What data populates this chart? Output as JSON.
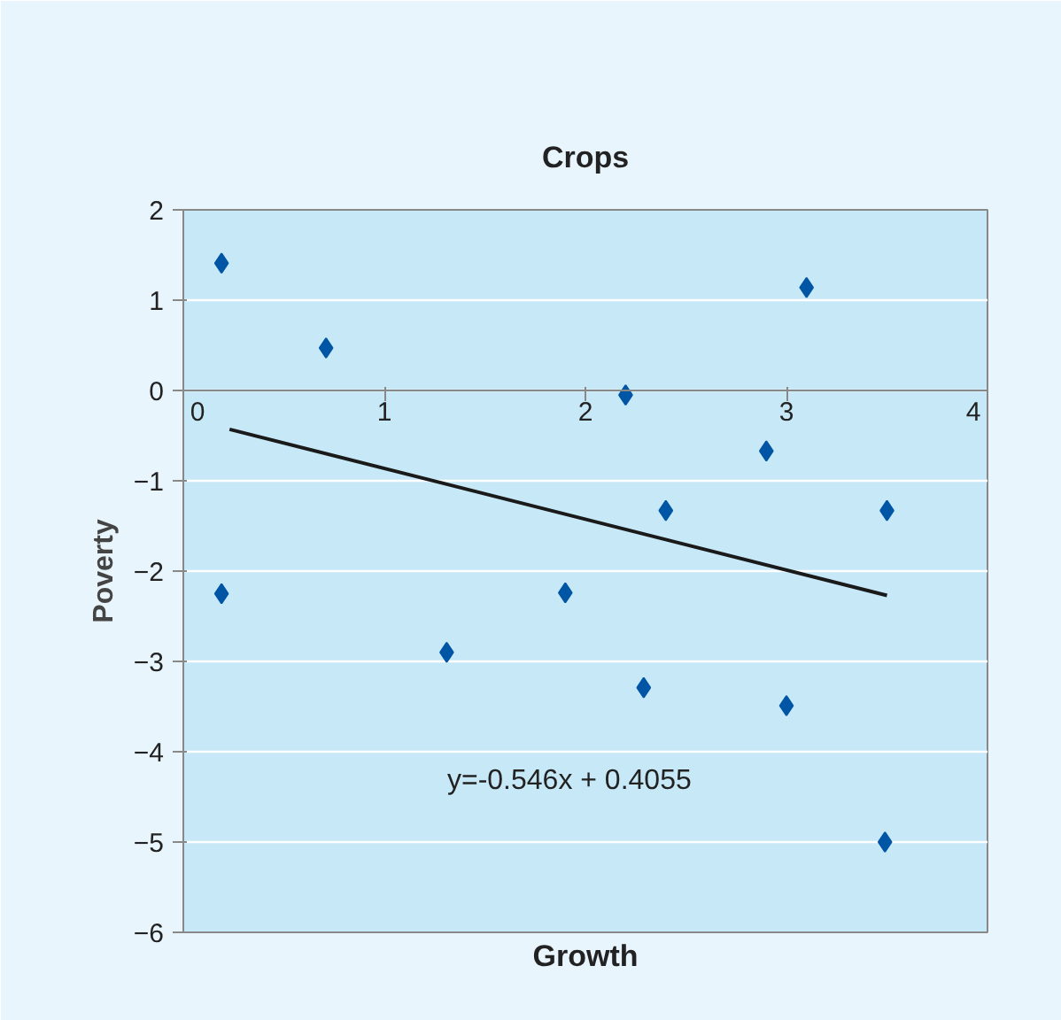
{
  "chart_data": {
    "type": "scatter",
    "title": "Crops",
    "xlabel": "Growth",
    "ylabel": "Poverty",
    "xlim": [
      0,
      4
    ],
    "xticks": [
      0,
      1,
      2,
      3,
      4
    ],
    "ylim": [
      -6,
      2
    ],
    "yticks": [
      -6,
      -5,
      -4,
      -3,
      -2,
      -1,
      0,
      1,
      2
    ],
    "grid": "y",
    "marker": "diamond",
    "series": [
      {
        "color": "#0055a5",
        "x": [
          0.19,
          0.71,
          0.19,
          1.31,
          1.9,
          2.2,
          2.4,
          2.29,
          2.9,
          3.1,
          3.0,
          3.5,
          3.49
        ],
        "values": [
          1.41,
          0.47,
          -2.25,
          -2.9,
          -2.24,
          -0.05,
          -1.33,
          -3.29,
          -0.67,
          1.14,
          -3.49,
          -1.33,
          -5.0
        ]
      },
      {
        "type": "line",
        "marker": "none",
        "color": "#1a1a1a",
        "x": [
          0.23,
          3.5
        ],
        "values": [
          -0.43,
          -2.27
        ]
      }
    ],
    "annotations": [
      "y=-0.546x + 0.4055"
    ]
  }
}
